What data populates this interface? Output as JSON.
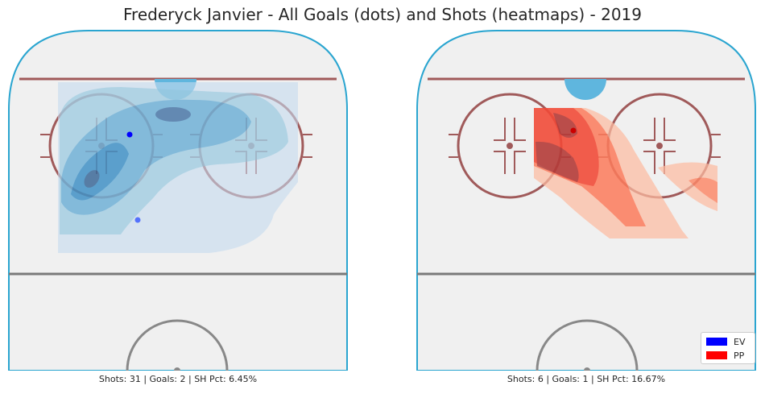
{
  "title": "Frederyck Janvier - All Goals (dots) and Shots (heatmaps) - 2019",
  "colors": {
    "ev": "#0000ff",
    "pp": "#ff0000",
    "board": "#2aa5d0",
    "ice": "#f0f0f0",
    "red_line": "#a05a5a",
    "blue_line": "#888888"
  },
  "chart_data": [
    {
      "type": "heatmap",
      "panel": "left",
      "strength": "EV",
      "caption": "Shots: 31 | Goals: 2 | SH Pct: 6.45%",
      "shots": 31,
      "goals": 2,
      "sh_pct": 6.45,
      "color_scale": "Blues",
      "goal_points": [
        {
          "x": -14,
          "y": 70
        },
        {
          "x": -13,
          "y": 52
        }
      ]
    },
    {
      "type": "heatmap",
      "panel": "right",
      "strength": "PP",
      "caption": "Shots: 6 | Goals: 1 | SH Pct: 16.67%",
      "shots": 6,
      "goals": 1,
      "sh_pct": 16.67,
      "color_scale": "Reds",
      "goal_points": [
        {
          "x": -2,
          "y": 71
        }
      ]
    }
  ],
  "legend": [
    {
      "label": "EV",
      "color": "#0000ff"
    },
    {
      "label": "PP",
      "color": "#ff0000"
    }
  ]
}
